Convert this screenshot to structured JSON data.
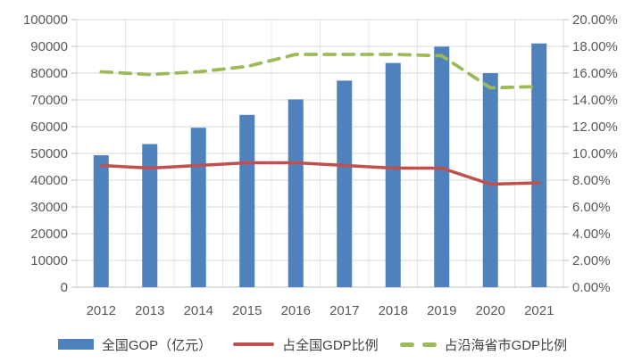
{
  "chart_data": {
    "type": "combo",
    "title": "",
    "categories": [
      "2012",
      "2013",
      "2014",
      "2015",
      "2016",
      "2017",
      "2018",
      "2019",
      "2020",
      "2021"
    ],
    "series": [
      {
        "name": "全国GOP（亿元）",
        "chart_type": "bar",
        "axis": "left",
        "color": "#4F81BD",
        "values": [
          49300,
          53500,
          59600,
          64400,
          70200,
          77200,
          83800,
          89900,
          80000,
          91100
        ]
      },
      {
        "name": "占全国GDP比例",
        "chart_type": "line",
        "line_style": "solid",
        "axis": "right",
        "color": "#C0504D",
        "unit": "%",
        "values": [
          9.1,
          8.9,
          9.1,
          9.3,
          9.3,
          9.1,
          8.9,
          8.9,
          7.7,
          7.8
        ]
      },
      {
        "name": "占沿海省市GDP比例",
        "chart_type": "line",
        "line_style": "dashed",
        "axis": "right",
        "color": "#9BBB59",
        "unit": "%",
        "values": [
          16.1,
          15.9,
          16.1,
          16.5,
          17.4,
          17.4,
          17.4,
          17.3,
          14.9,
          15.0
        ]
      }
    ],
    "left_axis": {
      "min": 0,
      "max": 100000,
      "step": 10000,
      "tick_labels_top_to_bottom": [
        "100000",
        "90000",
        "80000",
        "70000",
        "60000",
        "50000",
        "40000",
        "30000",
        "20000",
        "10000",
        "0"
      ]
    },
    "right_axis": {
      "min": 0,
      "max": 20,
      "step": 2,
      "tick_labels_top_to_bottom": [
        "20.00%",
        "18.00%",
        "16.00%",
        "14.00%",
        "12.00%",
        "10.00%",
        "8.00%",
        "6.00%",
        "4.00%",
        "2.00%",
        "0.00%"
      ]
    },
    "grid": {
      "horizontal": true,
      "vertical": true
    },
    "legend_position": "bottom",
    "colors": {
      "gridline": "#D9D9D9",
      "vertical_gridline": "#E6E6E6",
      "axis_line": "#BFBFBF",
      "tick_text": "#595959",
      "background": "#FFFFFF"
    }
  }
}
